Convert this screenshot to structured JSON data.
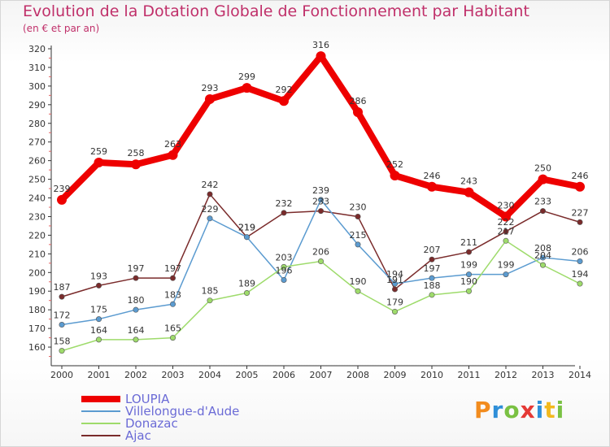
{
  "title": "Evolution de la Dotation Globale de Fonctionnement par Habitant",
  "subtitle": "(en € et par an)",
  "logo": {
    "text": "Proxiti",
    "colors": [
      "#f28c1e",
      "#2f8fd8",
      "#7ac143",
      "#e53935",
      "#2f8fd8",
      "#f2b91e",
      "#7ac143"
    ]
  },
  "chart_data": {
    "type": "line",
    "x": [
      "2000",
      "2001",
      "2002",
      "2003",
      "2004",
      "2005",
      "2006",
      "2007",
      "2008",
      "2009",
      "2010",
      "2011",
      "2012",
      "2013",
      "2014"
    ],
    "ylim": [
      150,
      320
    ],
    "yticks": [
      160,
      170,
      180,
      190,
      200,
      210,
      220,
      230,
      240,
      250,
      260,
      270,
      280,
      290,
      300,
      310,
      320
    ],
    "grid": false,
    "legend_position": "bottom-left",
    "series": [
      {
        "name": "LOUPIA",
        "color": "#ee0000",
        "values": [
          239,
          259,
          258,
          263,
          293,
          299,
          292,
          316,
          286,
          252,
          246,
          243,
          230,
          250,
          246
        ]
      },
      {
        "name": "Villelongue-d'Aude",
        "color": "#5b9bd0",
        "values": [
          172,
          175,
          180,
          183,
          229,
          219,
          196,
          239,
          215,
          194,
          197,
          199,
          199,
          208,
          206
        ]
      },
      {
        "name": "Donazac",
        "color": "#9edb6b",
        "values": [
          158,
          164,
          164,
          165,
          185,
          189,
          203,
          206,
          190,
          179,
          188,
          190,
          217,
          204,
          194
        ]
      },
      {
        "name": "Ajac",
        "color": "#7a2b2b",
        "values": [
          187,
          193,
          197,
          197,
          242,
          219,
          232,
          233,
          230,
          191,
          207,
          211,
          222,
          233,
          227
        ]
      }
    ]
  }
}
